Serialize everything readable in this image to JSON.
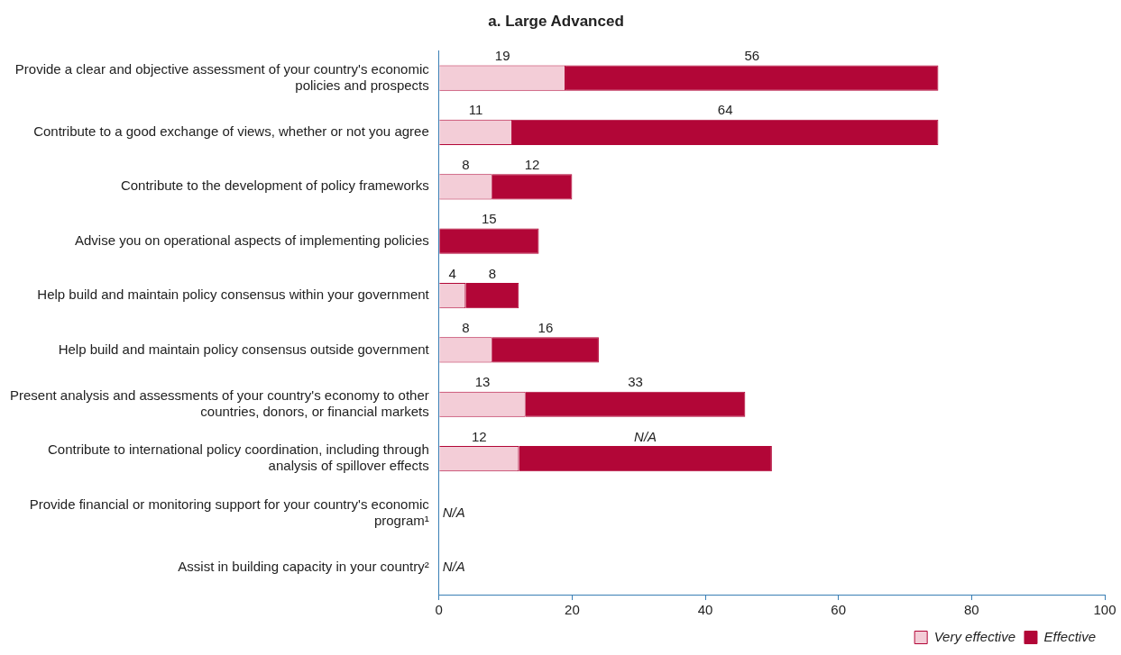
{
  "chart_data": {
    "type": "bar",
    "orientation": "horizontal",
    "stacked": true,
    "title": "a. Large Advanced",
    "categories": [
      "Provide a clear and objective assessment of your country's economic policies and prospects",
      "Contribute to a good exchange of views, whether or not you agree",
      "Contribute to the development of policy frameworks",
      "Advise you on operational aspects of implementing policies",
      "Help build and maintain policy consensus within your government",
      "Help build and maintain policy consensus outside government",
      "Present analysis and assessments of your country's economy to other countries, donors, or financial markets",
      "Contribute to international policy coordination, including through analysis of spillover effects",
      "Provide financial or monitoring support for your country's economic program¹",
      "Assist in building capacity in your country²"
    ],
    "series": [
      {
        "name": "Very effective",
        "color": "#f3cdd7",
        "values": [
          19,
          11,
          8,
          null,
          4,
          8,
          13,
          12,
          null,
          null
        ],
        "value_labels": [
          "19",
          "11",
          "8",
          null,
          "4",
          "8",
          "13",
          "12",
          null,
          null
        ]
      },
      {
        "name": "Effective",
        "color": "#b20637",
        "values": [
          56,
          64,
          12,
          15,
          8,
          16,
          33,
          38,
          null,
          null
        ],
        "value_labels": [
          "56",
          "64",
          "12",
          "15",
          "8",
          "16",
          "33",
          "N/A",
          null,
          null
        ]
      }
    ],
    "xlim": [
      0,
      100
    ],
    "xticks": [
      0,
      20,
      40,
      60,
      80,
      100
    ],
    "legend": "bottom right",
    "annotations": [
      "N/A",
      "N/A"
    ]
  }
}
